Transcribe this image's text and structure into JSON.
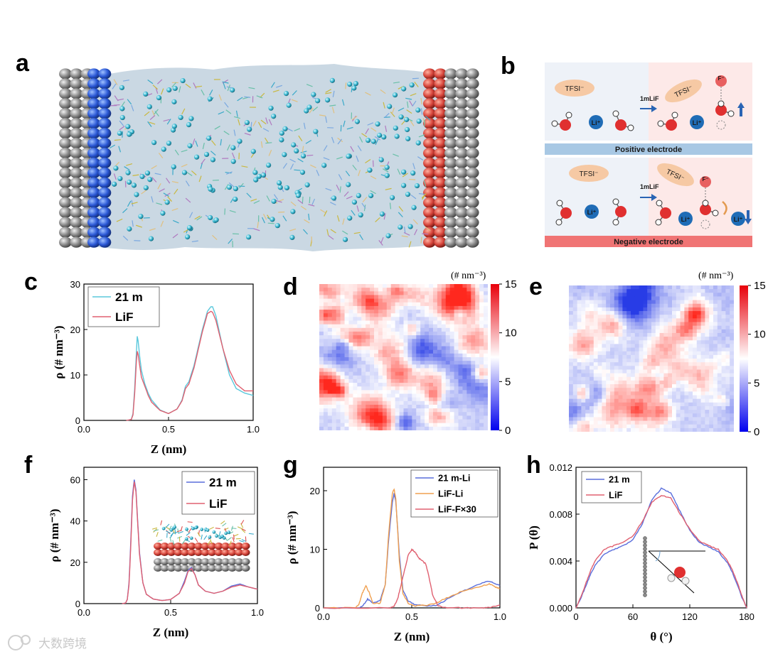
{
  "panel_labels": {
    "a": "a",
    "b": "b",
    "c": "c",
    "d": "d",
    "e": "e",
    "f": "f",
    "g": "g",
    "h": "h"
  },
  "diagram_b": {
    "tfsi": "TFSI⁻",
    "reagent": "1mLiF",
    "li": "Li⁺",
    "f": "F⁻",
    "positive_label": "Positive electrode",
    "negative_label": "Negative electrode",
    "colors": {
      "positive_bar": "#a8c8e4",
      "negative_bar": "#f07474",
      "arrow": "#2a64b4",
      "oxygen": "#e03030",
      "li_ion": "#1f6cb6",
      "tfsi": "#f6c9a4"
    }
  },
  "heatmaps": {
    "unit": "(# nm⁻³)",
    "ticks": [
      "15",
      "10",
      "5",
      "0"
    ]
  },
  "watermark": "大数跨境",
  "chart_data": [
    {
      "id": "c",
      "type": "line",
      "title": "",
      "xlabel": "Z (nm)",
      "ylabel": "ρ (# nm⁻³)",
      "xlim": [
        0,
        1
      ],
      "ylim": [
        0,
        30
      ],
      "xticks": [
        0,
        0.5,
        1.0
      ],
      "xtick_labels": [
        "0.0",
        "0.5",
        "1.0"
      ],
      "yticks": [
        0,
        10,
        20,
        30
      ],
      "ytick_labels": [
        "0",
        "10",
        "20",
        "30"
      ],
      "legend": "top-left",
      "series": [
        {
          "name": "21 m",
          "color": "#5bc8dc",
          "x": [
            0.25,
            0.28,
            0.29,
            0.3,
            0.31,
            0.315,
            0.32,
            0.33,
            0.34,
            0.36,
            0.38,
            0.4,
            0.45,
            0.5,
            0.55,
            0.58,
            0.6,
            0.62,
            0.65,
            0.7,
            0.73,
            0.75,
            0.76,
            0.78,
            0.82,
            0.86,
            0.9,
            0.95,
            1.0
          ],
          "y": [
            0,
            0.2,
            1.5,
            7,
            15,
            18.5,
            17.5,
            14,
            11,
            8,
            6,
            4.5,
            2.3,
            1.5,
            2.5,
            4.5,
            7.5,
            8.5,
            12,
            20,
            24,
            25,
            25,
            23,
            16,
            10,
            7,
            6,
            5.5
          ]
        },
        {
          "name": "LiF",
          "color": "#e06070",
          "x": [
            0.25,
            0.28,
            0.29,
            0.3,
            0.31,
            0.315,
            0.32,
            0.33,
            0.34,
            0.36,
            0.38,
            0.4,
            0.45,
            0.5,
            0.55,
            0.58,
            0.6,
            0.62,
            0.65,
            0.7,
            0.73,
            0.75,
            0.76,
            0.78,
            0.82,
            0.86,
            0.9,
            0.95,
            1.0
          ],
          "y": [
            0,
            0.2,
            1.2,
            6,
            13,
            15.2,
            14.5,
            12,
            9.5,
            7.5,
            5.5,
            4,
            2.2,
            1.5,
            2.5,
            4.3,
            7,
            8,
            11.5,
            19.5,
            23.5,
            24,
            23.8,
            22,
            16,
            11,
            8,
            6.5,
            6.5
          ]
        }
      ]
    },
    {
      "id": "f",
      "type": "line",
      "title": "",
      "xlabel": "Z (nm)",
      "ylabel": "ρ (# nm⁻³)",
      "xlim": [
        0,
        1
      ],
      "ylim": [
        0,
        66
      ],
      "xticks": [
        0,
        0.5,
        1.0
      ],
      "xtick_labels": [
        "0.0",
        "0.5",
        "1.0"
      ],
      "yticks": [
        0,
        20,
        40,
        60
      ],
      "ytick_labels": [
        "0",
        "20",
        "40",
        "60"
      ],
      "legend": "top-right",
      "series": [
        {
          "name": "21 m",
          "color": "#5a6edc",
          "x": [
            0.22,
            0.24,
            0.25,
            0.26,
            0.27,
            0.28,
            0.29,
            0.3,
            0.31,
            0.32,
            0.34,
            0.36,
            0.4,
            0.45,
            0.5,
            0.55,
            0.58,
            0.6,
            0.62,
            0.64,
            0.66,
            0.7,
            0.75,
            0.8,
            0.85,
            0.9,
            0.95,
            1.0
          ],
          "y": [
            0,
            0.3,
            2,
            10,
            30,
            52,
            60,
            55,
            40,
            25,
            10,
            4.5,
            2.2,
            1.5,
            2,
            5,
            11,
            16,
            17.5,
            14,
            9,
            6,
            5,
            6,
            8.5,
            9.5,
            8,
            7
          ]
        },
        {
          "name": "LiF",
          "color": "#e06070",
          "x": [
            0.22,
            0.24,
            0.25,
            0.26,
            0.27,
            0.28,
            0.29,
            0.3,
            0.31,
            0.32,
            0.34,
            0.36,
            0.4,
            0.45,
            0.5,
            0.55,
            0.58,
            0.6,
            0.62,
            0.64,
            0.66,
            0.7,
            0.75,
            0.8,
            0.85,
            0.9,
            0.95,
            1.0
          ],
          "y": [
            0,
            0.3,
            2,
            9,
            28,
            50,
            59,
            54,
            39,
            24,
            10,
            4.5,
            2.2,
            1.5,
            2,
            5,
            10,
            15.5,
            17,
            14,
            9,
            6,
            5,
            6,
            8,
            9,
            8,
            7
          ]
        }
      ]
    },
    {
      "id": "g",
      "type": "line",
      "title": "",
      "xlabel": "Z (nm)",
      "ylabel": "ρ (# nm⁻³)",
      "xlim": [
        0,
        1
      ],
      "ylim": [
        0,
        24
      ],
      "xticks": [
        0,
        0.5,
        1.0
      ],
      "xtick_labels": [
        "0.0",
        "0.5",
        "1.0"
      ],
      "yticks": [
        0,
        10,
        20
      ],
      "ytick_labels": [
        "0",
        "10",
        "20"
      ],
      "legend": "top-right",
      "series": [
        {
          "name": "21 m-Li",
          "color": "#5a6edc",
          "x": [
            0,
            0.2,
            0.22,
            0.25,
            0.28,
            0.32,
            0.35,
            0.37,
            0.39,
            0.4,
            0.41,
            0.43,
            0.45,
            0.48,
            0.52,
            0.6,
            0.65,
            0.7,
            0.8,
            0.88,
            0.94,
            0.97,
            1.0
          ],
          "y": [
            0,
            0,
            0.3,
            1.5,
            0.8,
            1.2,
            4,
            12,
            18,
            19.5,
            18,
            9,
            3,
            1.2,
            0.5,
            0.3,
            0.5,
            1.5,
            3,
            4,
            4.6,
            4.2,
            3.8
          ]
        },
        {
          "name": "LiF-Li",
          "color": "#f0a050",
          "x": [
            0,
            0.18,
            0.2,
            0.22,
            0.24,
            0.26,
            0.28,
            0.32,
            0.35,
            0.37,
            0.39,
            0.4,
            0.41,
            0.43,
            0.45,
            0.48,
            0.52,
            0.6,
            0.65,
            0.72,
            0.8,
            0.88,
            0.94,
            0.97,
            1.0
          ],
          "y": [
            0,
            0,
            0.5,
            2.5,
            3.8,
            2.5,
            0.8,
            0.7,
            4,
            13,
            19.5,
            20.3,
            18.5,
            8,
            2.5,
            0.8,
            0.3,
            0.5,
            1,
            2,
            3,
            3.6,
            4.1,
            3.6,
            3.3
          ]
        },
        {
          "name": "LiF-F×30",
          "color": "#e06070",
          "x": [
            0,
            0.38,
            0.4,
            0.42,
            0.44,
            0.46,
            0.48,
            0.5,
            0.52,
            0.54,
            0.56,
            0.58,
            0.6,
            0.62,
            0.65,
            0.7,
            0.8,
            0.9,
            0.95,
            1.0
          ],
          "y": [
            0,
            0,
            0.3,
            1.5,
            4,
            6.5,
            9,
            10,
            9.5,
            8.5,
            8,
            7.5,
            5,
            2,
            0.3,
            0,
            0,
            0,
            0.1,
            0.5
          ]
        }
      ]
    },
    {
      "id": "h",
      "type": "line",
      "title": "",
      "xlabel": "θ (°)",
      "ylabel": "P (θ)",
      "xlim": [
        0,
        180
      ],
      "ylim": [
        0,
        0.012
      ],
      "xticks": [
        0,
        60,
        120,
        180
      ],
      "xtick_labels": [
        "0",
        "60",
        "120",
        "180"
      ],
      "yticks": [
        0,
        0.004,
        0.008,
        0.012
      ],
      "ytick_labels": [
        "0.000",
        "0.004",
        "0.008",
        "0.012"
      ],
      "legend": "top-left",
      "series": [
        {
          "name": "21 m",
          "color": "#5a6edc",
          "x": [
            0,
            5,
            10,
            15,
            20,
            30,
            40,
            50,
            60,
            70,
            80,
            90,
            100,
            110,
            120,
            130,
            140,
            150,
            160,
            165,
            170,
            175,
            180
          ],
          "y": [
            0,
            0.0008,
            0.0018,
            0.0028,
            0.0036,
            0.0046,
            0.005,
            0.0053,
            0.0058,
            0.0072,
            0.0092,
            0.0102,
            0.0098,
            0.0082,
            0.0066,
            0.0056,
            0.0052,
            0.0048,
            0.0038,
            0.003,
            0.002,
            0.0009,
            0
          ]
        },
        {
          "name": "LiF",
          "color": "#e06070",
          "x": [
            0,
            5,
            10,
            15,
            20,
            30,
            40,
            50,
            60,
            70,
            80,
            90,
            100,
            110,
            120,
            130,
            140,
            150,
            160,
            165,
            170,
            175,
            180
          ],
          "y": [
            0,
            0.0009,
            0.002,
            0.0031,
            0.004,
            0.005,
            0.0053,
            0.0056,
            0.0061,
            0.0074,
            0.009,
            0.0096,
            0.0094,
            0.008,
            0.0067,
            0.0057,
            0.0053,
            0.005,
            0.004,
            0.0032,
            0.0022,
            0.001,
            0
          ]
        }
      ]
    }
  ]
}
